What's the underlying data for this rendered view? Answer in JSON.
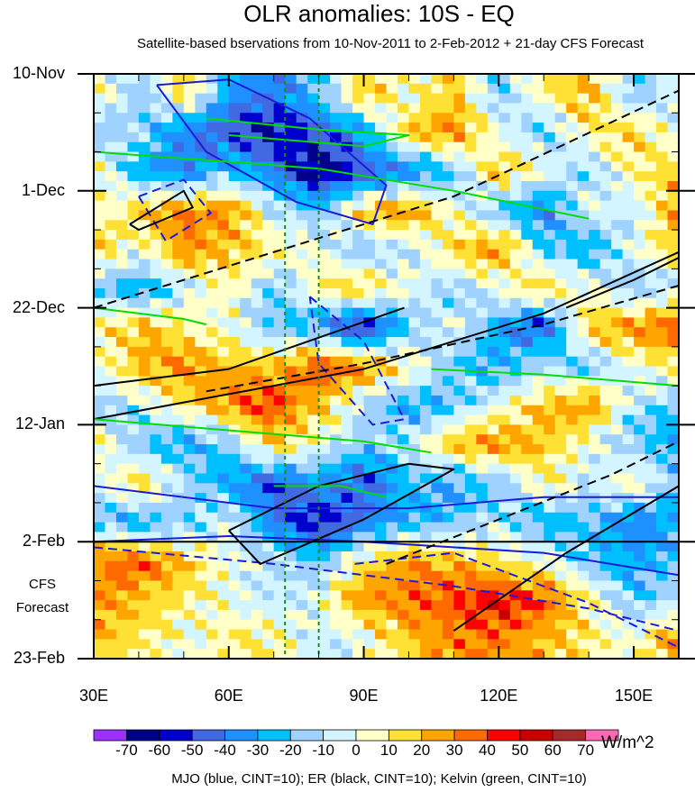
{
  "chart_data": {
    "type": "heatmap",
    "title": "OLR anomalies: 10S - EQ",
    "subtitle": "Satellite-based bservations from 10-Nov-2011 to 2-Feb-2012 + 21-day CFS Forecast",
    "xlabel": "",
    "ylabel": "",
    "x_range": [
      30,
      160
    ],
    "x_ticks": [
      30,
      60,
      90,
      120,
      150
    ],
    "x_tick_labels": [
      "30E",
      "60E",
      "90E",
      "120E",
      "150E"
    ],
    "y_range_days": [
      0,
      105
    ],
    "y_ticks_days": [
      0,
      21,
      42,
      63,
      84,
      105
    ],
    "y_tick_labels": [
      "10-Nov",
      "1-Dec",
      "22-Dec",
      "12-Jan",
      "2-Feb",
      "23-Feb"
    ],
    "forecast_start_day": 84,
    "forecast_label": [
      "CFS",
      "Forecast"
    ],
    "reference_lon_lines": [
      72.5,
      80
    ],
    "grid_lons": [
      30,
      40,
      50,
      60,
      70,
      80,
      90,
      100,
      110,
      120,
      130,
      140,
      150,
      160
    ],
    "grid_days_step": 7,
    "values": [
      [
        10,
        -20,
        20,
        -30,
        -40,
        -20,
        20,
        0,
        20,
        -20,
        10,
        20,
        -20,
        0
      ],
      [
        -20,
        -10,
        -40,
        -50,
        -60,
        -50,
        -30,
        20,
        30,
        0,
        -20,
        10,
        20,
        -10
      ],
      [
        10,
        -30,
        -40,
        -20,
        -40,
        -70,
        -50,
        -40,
        -20,
        20,
        0,
        -20,
        10,
        20
      ],
      [
        0,
        20,
        30,
        30,
        -10,
        -20,
        20,
        30,
        0,
        -20,
        -40,
        0,
        -10,
        30
      ],
      [
        20,
        0,
        30,
        20,
        10,
        0,
        -20,
        -10,
        20,
        30,
        -20,
        -30,
        0,
        20
      ],
      [
        -20,
        -30,
        -10,
        10,
        -20,
        10,
        20,
        0,
        -20,
        0,
        20,
        0,
        -20,
        -10
      ],
      [
        10,
        20,
        10,
        0,
        -20,
        -30,
        -60,
        -20,
        0,
        -30,
        -50,
        20,
        30,
        40
      ],
      [
        0,
        20,
        30,
        20,
        20,
        40,
        30,
        10,
        -20,
        -30,
        -10,
        -20,
        0,
        10
      ],
      [
        -20,
        -10,
        10,
        30,
        40,
        20,
        -10,
        -30,
        -20,
        0,
        20,
        30,
        -10,
        -20
      ],
      [
        10,
        -20,
        -30,
        -20,
        20,
        0,
        -20,
        -10,
        20,
        30,
        20,
        0,
        -20,
        -30
      ],
      [
        -10,
        20,
        -10,
        -30,
        -50,
        -30,
        -50,
        -20,
        -30,
        -20,
        10,
        -10,
        10,
        -20
      ],
      [
        -20,
        -30,
        -20,
        0,
        -40,
        -60,
        -40,
        -30,
        -20,
        -10,
        -30,
        -20,
        -40,
        -30
      ],
      [
        30,
        40,
        20,
        0,
        -10,
        -20,
        10,
        30,
        20,
        10,
        0,
        -20,
        -30,
        -20
      ],
      [
        30,
        20,
        10,
        0,
        -10,
        0,
        30,
        30,
        40,
        50,
        40,
        10,
        -20,
        -10
      ],
      [
        20,
        10,
        0,
        10,
        10,
        -10,
        0,
        20,
        30,
        30,
        20,
        10,
        0,
        30
      ]
    ],
    "colorbar": {
      "levels": [
        -70,
        -60,
        -50,
        -40,
        -30,
        -20,
        -10,
        0,
        10,
        20,
        30,
        40,
        50,
        60,
        70
      ],
      "labels": [
        "-70",
        "-60",
        "-50",
        "-40",
        "-30",
        "-20",
        "-10",
        "0",
        "10",
        "20",
        "30",
        "40",
        "50",
        "60",
        "70"
      ],
      "colors": [
        "#9b30ff",
        "#00008b",
        "#0000cd",
        "#4169e1",
        "#1e90ff",
        "#00bfff",
        "#a0d2ff",
        "#d2f5ff",
        "#ffffc8",
        "#ffe135",
        "#ffa500",
        "#ff6a00",
        "#ff0000",
        "#c80000",
        "#a52a2a",
        "#ff69b4"
      ],
      "units": "W/m^2"
    },
    "contour_legend": "MJO (blue, CINT=10); ER (black, CINT=10); Kelvin (green, CINT=10)",
    "contours": [
      {
        "wave": "MJO",
        "color": "#1a1adc",
        "dash": false,
        "points": [
          [
            44,
            2
          ],
          [
            60,
            1
          ],
          [
            78,
            8
          ],
          [
            95,
            20
          ],
          [
            92,
            27
          ],
          [
            75,
            23
          ],
          [
            55,
            14
          ],
          [
            44,
            2
          ]
        ]
      },
      {
        "wave": "MJO",
        "color": "#1a1adc",
        "dash": false,
        "points": [
          [
            30,
            74
          ],
          [
            70,
            78
          ],
          [
            100,
            78
          ],
          [
            130,
            76
          ],
          [
            160,
            76
          ]
        ]
      },
      {
        "wave": "MJO",
        "color": "#1a1adc",
        "dash": false,
        "points": [
          [
            30,
            84
          ],
          [
            60,
            83
          ],
          [
            90,
            84
          ],
          [
            130,
            86
          ],
          [
            160,
            90
          ]
        ]
      },
      {
        "wave": "MJO",
        "color": "#1a1adc",
        "dash": true,
        "points": [
          [
            30,
            85
          ],
          [
            70,
            88
          ],
          [
            110,
            92
          ],
          [
            140,
            96
          ],
          [
            160,
            100
          ]
        ]
      },
      {
        "wave": "MJO",
        "color": "#1a1adc",
        "dash": true,
        "points": [
          [
            40,
            22
          ],
          [
            50,
            19
          ],
          [
            56,
            25
          ],
          [
            46,
            30
          ],
          [
            40,
            22
          ]
        ]
      },
      {
        "wave": "MJO",
        "color": "#1a1adc",
        "dash": true,
        "points": [
          [
            78,
            40
          ],
          [
            90,
            48
          ],
          [
            99,
            62
          ],
          [
            92,
            63
          ],
          [
            80,
            52
          ],
          [
            78,
            40
          ]
        ]
      },
      {
        "wave": "MJO",
        "color": "#1a1adc",
        "dash": true,
        "points": [
          [
            88,
            88
          ],
          [
            110,
            86
          ],
          [
            140,
            95
          ],
          [
            160,
            103
          ]
        ]
      },
      {
        "wave": "ER",
        "color": "#000000",
        "dash": false,
        "points": [
          [
            30,
            56
          ],
          [
            60,
            53
          ],
          [
            99,
            42
          ]
        ]
      },
      {
        "wave": "ER",
        "color": "#000000",
        "dash": false,
        "points": [
          [
            30,
            62
          ],
          [
            90,
            53
          ],
          [
            130,
            43
          ],
          [
            160,
            32
          ]
        ]
      },
      {
        "wave": "ER",
        "color": "#000000",
        "dash": false,
        "points": [
          [
            38,
            27
          ],
          [
            50,
            21
          ],
          [
            52,
            24
          ],
          [
            40,
            28
          ],
          [
            38,
            27
          ]
        ]
      },
      {
        "wave": "ER",
        "color": "#000000",
        "dash": false,
        "points": [
          [
            60,
            82
          ],
          [
            80,
            74
          ],
          [
            100,
            70
          ],
          [
            110,
            71
          ],
          [
            90,
            80
          ],
          [
            67,
            88
          ],
          [
            60,
            82
          ]
        ]
      },
      {
        "wave": "ER",
        "color": "#000000",
        "dash": false,
        "points": [
          [
            110,
            100
          ],
          [
            135,
            86
          ],
          [
            160,
            74
          ]
        ]
      },
      {
        "wave": "ER",
        "color": "#000000",
        "dash": false,
        "points": [
          [
            135,
            42
          ],
          [
            150,
            37
          ],
          [
            160,
            33
          ]
        ]
      },
      {
        "wave": "ER",
        "color": "#000000",
        "dash": true,
        "points": [
          [
            30,
            42
          ],
          [
            70,
            32
          ],
          [
            110,
            22
          ],
          [
            160,
            3
          ]
        ]
      },
      {
        "wave": "ER",
        "color": "#000000",
        "dash": true,
        "points": [
          [
            55,
            57
          ],
          [
            90,
            52
          ],
          [
            130,
            45
          ],
          [
            160,
            38
          ]
        ]
      },
      {
        "wave": "ER",
        "color": "#000000",
        "dash": true,
        "points": [
          [
            95,
            88
          ],
          [
            120,
            80
          ],
          [
            145,
            72
          ],
          [
            160,
            66
          ]
        ]
      },
      {
        "wave": "Kelvin",
        "color": "#00dd00",
        "dash": false,
        "points": [
          [
            30,
            14
          ],
          [
            80,
            17
          ],
          [
            110,
            21
          ],
          [
            140,
            26
          ]
        ]
      },
      {
        "wave": "Kelvin",
        "color": "#00dd00",
        "dash": false,
        "points": [
          [
            55,
            8
          ],
          [
            80,
            10
          ],
          [
            100,
            11
          ],
          [
            90,
            13
          ],
          [
            60,
            11
          ]
        ]
      },
      {
        "wave": "Kelvin",
        "color": "#00dd00",
        "dash": false,
        "points": [
          [
            30,
            62
          ],
          [
            60,
            64
          ],
          [
            90,
            66
          ],
          [
            105,
            68
          ]
        ]
      },
      {
        "wave": "Kelvin",
        "color": "#00dd00",
        "dash": false,
        "points": [
          [
            105,
            53
          ],
          [
            130,
            54
          ],
          [
            160,
            56
          ]
        ]
      },
      {
        "wave": "Kelvin",
        "color": "#00dd00",
        "dash": false,
        "points": [
          [
            30,
            42
          ],
          [
            50,
            44
          ],
          [
            55,
            45
          ]
        ]
      },
      {
        "wave": "Kelvin",
        "color": "#00dd00",
        "dash": false,
        "points": [
          [
            70,
            74
          ],
          [
            85,
            74
          ],
          [
            95,
            76
          ]
        ]
      }
    ]
  }
}
